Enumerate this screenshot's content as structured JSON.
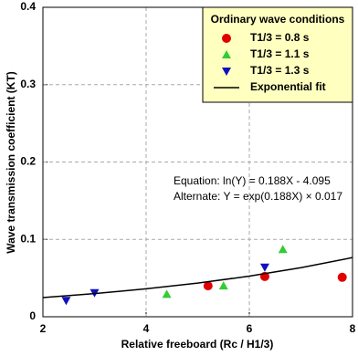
{
  "chart_data": {
    "type": "scatter",
    "xlabel": "Relative freeboard (Rc / H1/3)",
    "ylabel": "Wave transmission coefficient (KT)",
    "xlim": [
      2,
      8
    ],
    "ylim": [
      0,
      0.4
    ],
    "xticks": [
      2,
      4,
      6,
      8
    ],
    "yticks": [
      0,
      0.1,
      0.2,
      0.3,
      0.4
    ],
    "grid": true,
    "legend_title": "Ordinary wave conditions",
    "legend_position": "upper right",
    "annotations": [
      "Equation: ln(Y) = 0.188X - 4.095",
      "Alternate: Y = exp(0.188X) × 0.017"
    ],
    "series": [
      {
        "name": "T1/3 = 0.8 s",
        "color": "#e00000",
        "marker": "circle",
        "x": [
          5.2,
          6.3,
          7.8
        ],
        "values": [
          0.04,
          0.052,
          0.051
        ]
      },
      {
        "name": "T1/3 = 1.1 s",
        "color": "#33cc33",
        "marker": "triangle-up",
        "x": [
          4.4,
          5.5,
          6.65
        ],
        "values": [
          0.029,
          0.04,
          0.087
        ]
      },
      {
        "name": "T1/3 = 1.3 s",
        "color": "#1010c0",
        "marker": "triangle-down",
        "x": [
          2.45,
          3.0,
          6.3
        ],
        "values": [
          0.021,
          0.031,
          0.064
        ]
      },
      {
        "name": "Exponential fit",
        "color": "#000000",
        "marker": "line",
        "x": [
          2,
          3,
          4,
          5,
          6,
          7,
          8
        ],
        "values": [
          0.0248,
          0.0299,
          0.0361,
          0.0435,
          0.0525,
          0.0634,
          0.0765
        ]
      }
    ]
  }
}
